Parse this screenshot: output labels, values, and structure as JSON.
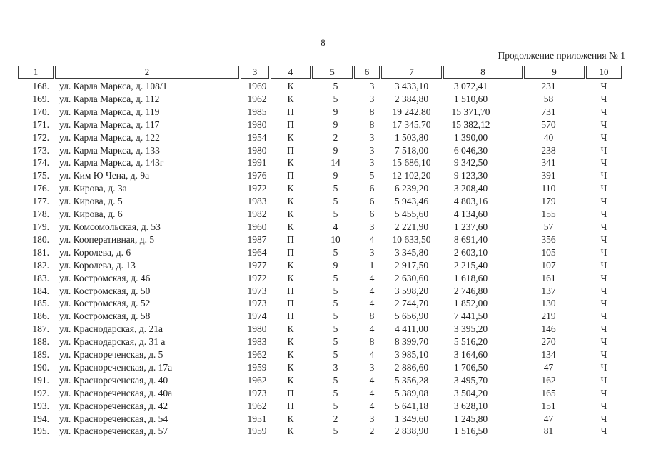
{
  "document": {
    "page_number": "8",
    "continuation_note": "Продолжение приложения № 1"
  },
  "table": {
    "column_headers": [
      "1",
      "2",
      "3",
      "4",
      "5",
      "6",
      "7",
      "8",
      "9",
      "10"
    ],
    "rows": [
      [
        "168.",
        "ул. Карла Маркса, д. 108/1",
        "1969",
        "К",
        "5",
        "3",
        "3 433,10",
        "3 072,41",
        "231",
        "Ч"
      ],
      [
        "169.",
        "ул. Карла Маркса, д. 112",
        "1962",
        "К",
        "5",
        "3",
        "2 384,80",
        "1 510,60",
        "58",
        "Ч"
      ],
      [
        "170.",
        "ул. Карла Маркса, д. 119",
        "1985",
        "П",
        "9",
        "8",
        "19 242,80",
        "15 371,70",
        "731",
        "Ч"
      ],
      [
        "171.",
        "ул. Карла Маркса, д. 117",
        "1980",
        "П",
        "9",
        "8",
        "17 345,70",
        "15 382,12",
        "570",
        "Ч"
      ],
      [
        "172.",
        "ул. Карла Маркса, д. 122",
        "1954",
        "К",
        "2",
        "3",
        "1 503,80",
        "1 390,00",
        "40",
        "Ч"
      ],
      [
        "173.",
        "ул. Карла Маркса, д. 133",
        "1980",
        "П",
        "9",
        "3",
        "7 518,00",
        "6 046,30",
        "238",
        "Ч"
      ],
      [
        "174.",
        "ул. Карла Маркса, д. 143г",
        "1991",
        "К",
        "14",
        "3",
        "15 686,10",
        "9 342,50",
        "341",
        "Ч"
      ],
      [
        "175.",
        "ул. Ким Ю Чена, д. 9а",
        "1976",
        "П",
        "9",
        "5",
        "12 102,20",
        "9 123,30",
        "391",
        "Ч"
      ],
      [
        "176.",
        "ул. Кирова, д. 3а",
        "1972",
        "К",
        "5",
        "6",
        "6 239,20",
        "3 208,40",
        "110",
        "Ч"
      ],
      [
        "177.",
        "ул. Кирова, д. 5",
        "1983",
        "К",
        "5",
        "6",
        "5 943,46",
        "4 803,16",
        "179",
        "Ч"
      ],
      [
        "178.",
        "ул. Кирова, д. 6",
        "1982",
        "К",
        "5",
        "6",
        "5 455,60",
        "4 134,60",
        "155",
        "Ч"
      ],
      [
        "179.",
        "ул. Комсомольская, д. 53",
        "1960",
        "К",
        "4",
        "3",
        "2 221,90",
        "1 237,60",
        "57",
        "Ч"
      ],
      [
        "180.",
        "ул. Кооперативная, д. 5",
        "1987",
        "П",
        "10",
        "4",
        "10 633,50",
        "8 691,40",
        "356",
        "Ч"
      ],
      [
        "181.",
        "ул. Королева, д. 6",
        "1964",
        "П",
        "5",
        "3",
        "3 345,80",
        "2 603,10",
        "105",
        "Ч"
      ],
      [
        "182.",
        "ул. Королева, д. 13",
        "1977",
        "К",
        "9",
        "1",
        "2 917,50",
        "2 215,40",
        "107",
        "Ч"
      ],
      [
        "183.",
        "ул. Костромская, д. 46",
        "1972",
        "К",
        "5",
        "4",
        "2 630,60",
        "1 618,60",
        "161",
        "Ч"
      ],
      [
        "184.",
        "ул. Костромская, д. 50",
        "1973",
        "П",
        "5",
        "4",
        "3 598,20",
        "2 746,80",
        "137",
        "Ч"
      ],
      [
        "185.",
        "ул. Костромская, д. 52",
        "1973",
        "П",
        "5",
        "4",
        "2 744,70",
        "1 852,00",
        "130",
        "Ч"
      ],
      [
        "186.",
        "ул. Костромская, д. 58",
        "1974",
        "П",
        "5",
        "8",
        "5 656,90",
        "7 441,50",
        "219",
        "Ч"
      ],
      [
        "187.",
        "ул. Краснодарская, д. 21а",
        "1980",
        "К",
        "5",
        "4",
        "4 411,00",
        "3 395,20",
        "146",
        "Ч"
      ],
      [
        "188.",
        "ул. Краснодарская, д. 31 а",
        "1983",
        "К",
        "5",
        "8",
        "8 399,70",
        "5 516,20",
        "270",
        "Ч"
      ],
      [
        "189.",
        "ул. Краснореченская, д. 5",
        "1962",
        "К",
        "5",
        "4",
        "3 985,10",
        "3 164,60",
        "134",
        "Ч"
      ],
      [
        "190.",
        "ул. Краснореченская, д. 17а",
        "1959",
        "К",
        "3",
        "3",
        "2 886,60",
        "1 706,50",
        "47",
        "Ч"
      ],
      [
        "191.",
        "ул. Краснореченская, д. 40",
        "1962",
        "К",
        "5",
        "4",
        "5 356,28",
        "3 495,70",
        "162",
        "Ч"
      ],
      [
        "192.",
        "ул. Краснореченская, д. 40а",
        "1973",
        "П",
        "5",
        "4",
        "5 389,08",
        "3 504,20",
        "165",
        "Ч"
      ],
      [
        "193.",
        "ул. Краснореченская, д. 42",
        "1962",
        "П",
        "5",
        "4",
        "5 641,18",
        "3 628,10",
        "151",
        "Ч"
      ],
      [
        "194.",
        "ул. Краснореченская, д. 54",
        "1951",
        "К",
        "2",
        "3",
        "1 349,60",
        "1 245,80",
        "47",
        "Ч"
      ],
      [
        "195.",
        "ул. Краснореченская, д. 57",
        "1959",
        "К",
        "5",
        "2",
        "2 838,90",
        "1 516,50",
        "81",
        "Ч"
      ]
    ]
  }
}
